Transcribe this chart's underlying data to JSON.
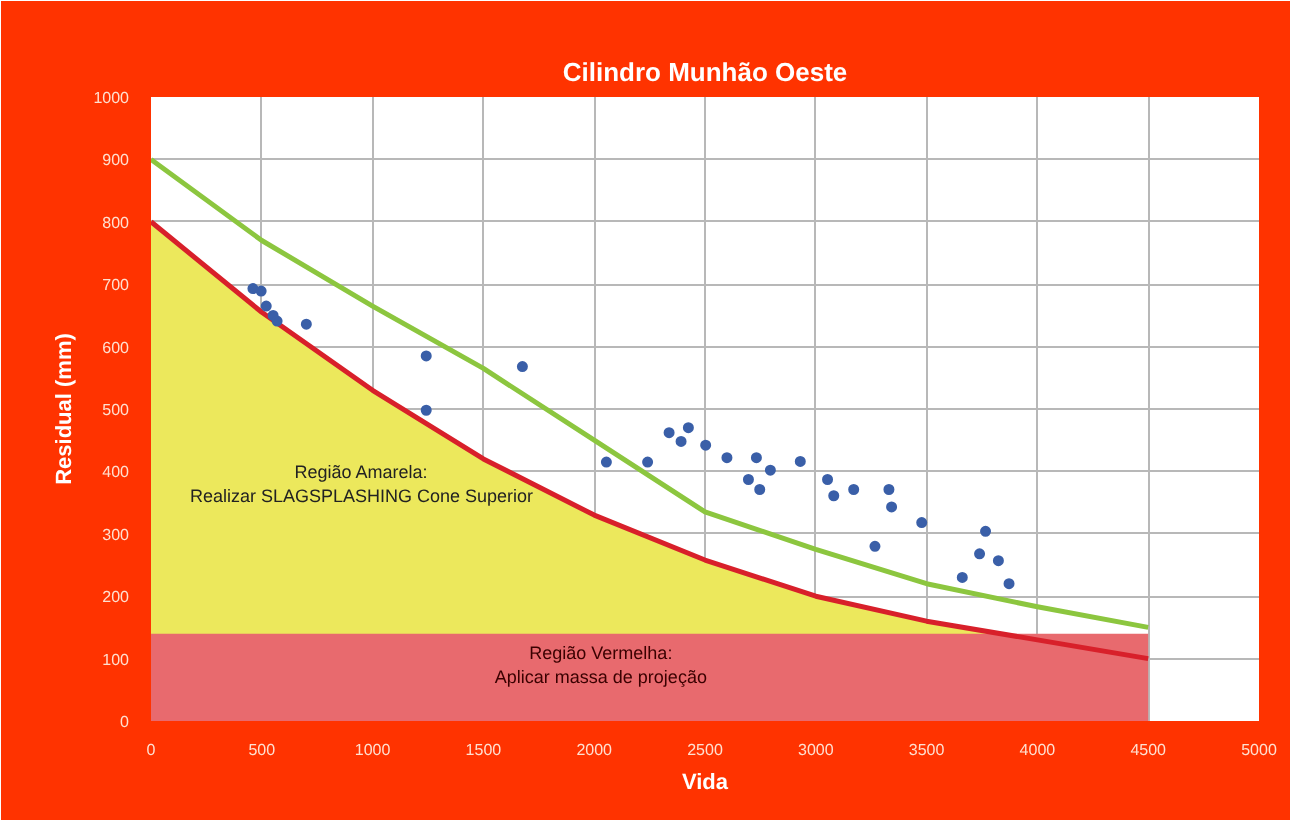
{
  "chart_data": {
    "type": "scatter",
    "title": "Cilindro Munhão Oeste",
    "xlabel": "Vida",
    "ylabel": "Residual (mm)",
    "xlim": [
      0,
      5000
    ],
    "ylim": [
      0,
      1000
    ],
    "xticks": [
      0,
      500,
      1000,
      1500,
      2000,
      2500,
      3000,
      3500,
      4000,
      4500,
      5000
    ],
    "yticks": [
      0,
      100,
      200,
      300,
      400,
      500,
      600,
      700,
      800,
      900,
      1000
    ],
    "grid": true,
    "series": [
      {
        "type": "area",
        "color": "#ece85c",
        "x": [
          0,
          500,
          1000,
          1500,
          2000,
          2500,
          3000,
          3500,
          3800
        ],
        "values": [
          800,
          655,
          530,
          420,
          330,
          258,
          200,
          160,
          140
        ]
      },
      {
        "type": "area",
        "color": "#e86a6e",
        "x": [
          0,
          4500
        ],
        "values": [
          140,
          140
        ]
      },
      {
        "type": "line",
        "color": "#d8202a",
        "x": [
          0,
          500,
          1000,
          1500,
          2000,
          2500,
          3000,
          3500,
          4000,
          4500
        ],
        "values": [
          800,
          655,
          530,
          420,
          330,
          258,
          200,
          160,
          130,
          100
        ]
      },
      {
        "type": "line",
        "color": "#8cc63f",
        "x": [
          0,
          500,
          1000,
          1500,
          2000,
          2500,
          3000,
          3500,
          4000,
          4500
        ],
        "values": [
          900,
          770,
          665,
          565,
          450,
          335,
          275,
          220,
          183,
          150
        ]
      },
      {
        "marker": "circle",
        "color": "#3a5fa8",
        "x": [
          460,
          497,
          520,
          551,
          569,
          701,
          1242,
          1242,
          1676,
          2055,
          2241,
          2338,
          2392,
          2425,
          2503,
          2599,
          2696,
          2732,
          2747,
          2795,
          2930,
          3053,
          3081,
          3171,
          3267,
          3330,
          3342,
          3478,
          3661,
          3739,
          3766,
          3824,
          3872
        ],
        "values": [
          693,
          689,
          665,
          650,
          641,
          636,
          585,
          498,
          568,
          415,
          415,
          462,
          448,
          470,
          442,
          422,
          387,
          422,
          371,
          402,
          416,
          387,
          361,
          371,
          280,
          371,
          343,
          318,
          230,
          268,
          304,
          257,
          220
        ]
      }
    ],
    "annotations": [
      "Região Amarela:\nRealizar SLAGSPLASHING Cone Superior",
      "Região Vermelha:\nAplicar massa de projeção"
    ]
  }
}
